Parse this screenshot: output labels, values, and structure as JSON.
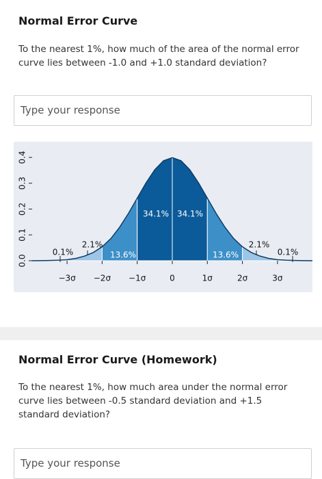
{
  "cards": [
    {
      "title": "Normal Error Curve",
      "question": "To the nearest 1%, how much of the area of the normal error curve lies between -1.0 and +1.0 standard deviation?",
      "placeholder": "Type your response"
    },
    {
      "title": "Normal Error Curve (Homework)",
      "question": "To the nearest 1%, how much area under the normal error curve lies between -0.5 standard deviation and +1.5 standard deviation?",
      "placeholder": "Type your response"
    }
  ],
  "chart": {
    "type": "area",
    "x": [
      -4,
      -3.75,
      -3.5,
      -3.25,
      -3,
      -2.75,
      -2.5,
      -2.25,
      -2,
      -1.75,
      -1.5,
      -1.25,
      -1,
      -0.75,
      -0.5,
      -0.25,
      0,
      0.25,
      0.5,
      0.75,
      1,
      1.25,
      1.5,
      1.75,
      2,
      2.25,
      2.5,
      2.75,
      3,
      3.25,
      3.5,
      3.75,
      4
    ],
    "density": [
      0.0001,
      0.0004,
      0.001,
      0.002,
      0.004,
      0.009,
      0.018,
      0.032,
      0.054,
      0.086,
      0.13,
      0.183,
      0.242,
      0.301,
      0.352,
      0.387,
      0.399,
      0.387,
      0.352,
      0.301,
      0.242,
      0.183,
      0.13,
      0.086,
      0.054,
      0.032,
      0.018,
      0.009,
      0.004,
      0.002,
      0.001,
      0.0004,
      0.0001
    ],
    "line_color": "#0d3b66",
    "regions": [
      {
        "from": -4,
        "to": -3,
        "value": 0.1,
        "label": "0.1%",
        "color": "#9cc5e6"
      },
      {
        "from": -3,
        "to": -2,
        "value": 2.1,
        "label": "2.1%",
        "color": "#9cc5e6"
      },
      {
        "from": -2,
        "to": -1,
        "value": 13.6,
        "label": "13.6%",
        "color": "#3d8fc8"
      },
      {
        "from": -1,
        "to": 0,
        "value": 34.1,
        "label": "34.1%",
        "color": "#0b5a99"
      },
      {
        "from": 0,
        "to": 1,
        "value": 34.1,
        "label": "34.1%",
        "color": "#0b5a99"
      },
      {
        "from": 1,
        "to": 2,
        "value": 13.6,
        "label": "13.6%",
        "color": "#3d8fc8"
      },
      {
        "from": 2,
        "to": 3,
        "value": 2.1,
        "label": "2.1%",
        "color": "#9cc5e6"
      },
      {
        "from": 3,
        "to": 4,
        "value": 0.1,
        "label": "0.1%",
        "color": "#9cc5e6"
      }
    ],
    "xlim": [
      -4,
      4
    ],
    "ylim": [
      0,
      0.4
    ],
    "xticks": [
      {
        "value": -3,
        "label": "−3σ"
      },
      {
        "value": -2,
        "label": "−2σ"
      },
      {
        "value": -1,
        "label": "−1σ"
      },
      0,
      {
        "value": 1,
        "label": "1σ"
      },
      {
        "value": 2,
        "label": "2σ"
      },
      {
        "value": 3,
        "label": "3σ"
      }
    ],
    "yticks": [
      {
        "value": 0,
        "label": "0.0"
      },
      0.1,
      0.2,
      0.3,
      0.4
    ]
  }
}
